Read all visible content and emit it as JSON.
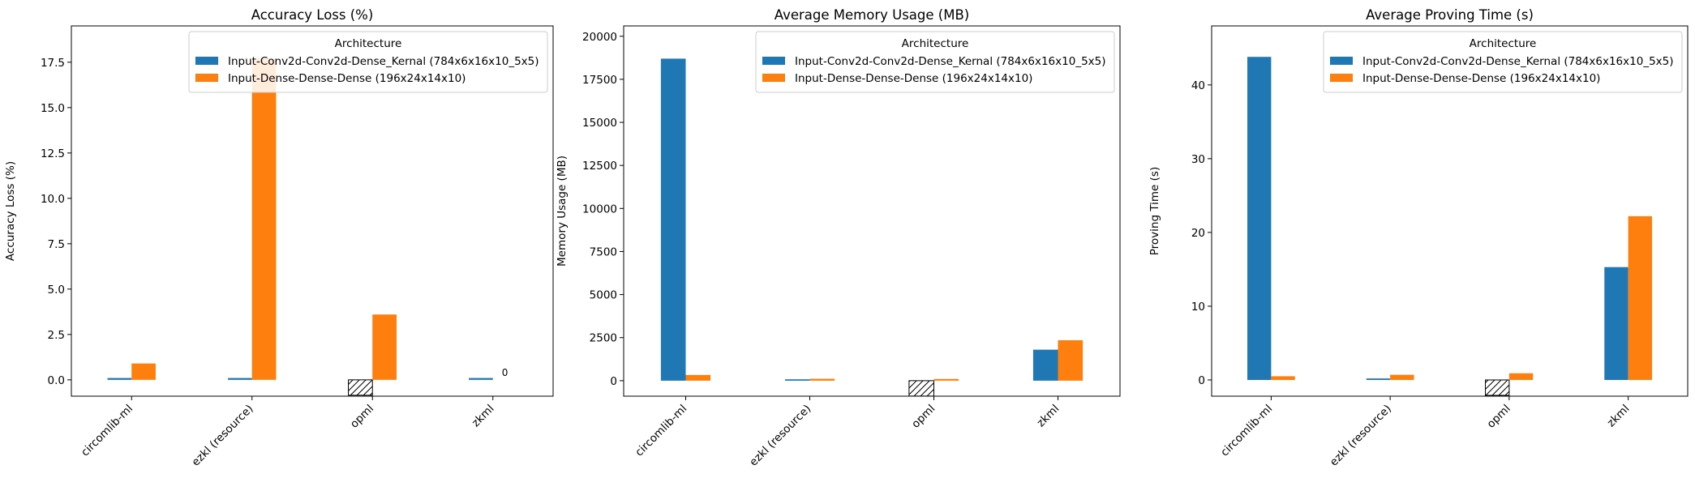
{
  "colors": {
    "series0": "#1f77b4",
    "series1": "#ff7f0e",
    "axis": "#000000"
  },
  "chart_data": [
    {
      "type": "bar",
      "title": "Accuracy Loss (%)",
      "ylabel": "Accuracy Loss (%)",
      "xlabel": "",
      "categories": [
        "circomlib-ml",
        "ezkl (resource)",
        "opml",
        "zkml"
      ],
      "ylim": [
        -0.9,
        19.5
      ],
      "yticks": [
        0.0,
        2.5,
        5.0,
        7.5,
        10.0,
        12.5,
        15.0,
        17.5
      ],
      "ytick_labels": [
        "0.0",
        "2.5",
        "5.0",
        "7.5",
        "10.0",
        "12.5",
        "15.0",
        "17.5"
      ],
      "legend_title": "Architecture",
      "legend_position": "upper right",
      "series": [
        {
          "name": "Input-Conv2d-Conv2d-Dense_Kernal (784x6x16x10_5x5)",
          "values": [
            0.1,
            0.1,
            null,
            0.1
          ]
        },
        {
          "name": "Input-Dense-Dense-Dense (196x24x14x10)",
          "values": [
            0.9,
            17.7,
            3.6,
            0
          ]
        }
      ],
      "missing": {
        "category": "opml",
        "series_index": 0,
        "style": "hatched"
      },
      "annotations": [
        {
          "text": "0",
          "category": "zkml",
          "series_index": 1
        }
      ]
    },
    {
      "type": "bar",
      "title": "Average Memory Usage (MB)",
      "ylabel": "Memory Usage (MB)",
      "xlabel": "",
      "categories": [
        "circomlib-ml",
        "ezkl (resource)",
        "opml",
        "zkml"
      ],
      "ylim": [
        -900,
        20600
      ],
      "yticks": [
        0,
        2500,
        5000,
        7500,
        10000,
        12500,
        15000,
        17500,
        20000
      ],
      "ytick_labels": [
        "0",
        "2500",
        "5000",
        "7500",
        "10000",
        "12500",
        "15000",
        "17500",
        "20000"
      ],
      "legend_title": "Architecture",
      "legend_position": "upper right",
      "series": [
        {
          "name": "Input-Conv2d-Conv2d-Dense_Kernal (784x6x16x10_5x5)",
          "values": [
            18700,
            80,
            null,
            1800
          ]
        },
        {
          "name": "Input-Dense-Dense-Dense (196x24x14x10)",
          "values": [
            330,
            110,
            100,
            2350
          ]
        }
      ],
      "missing": {
        "category": "opml",
        "series_index": 0,
        "style": "hatched"
      },
      "annotations": []
    },
    {
      "type": "bar",
      "title": "Average Proving Time (s)",
      "ylabel": "Proving Time (s)",
      "xlabel": "",
      "categories": [
        "circomlib-ml",
        "ezkl (resource)",
        "opml",
        "zkml"
      ],
      "ylim": [
        -2.2,
        48
      ],
      "yticks": [
        0,
        10,
        20,
        30,
        40
      ],
      "ytick_labels": [
        "0",
        "10",
        "20",
        "30",
        "40"
      ],
      "legend_title": "Architecture",
      "legend_position": "upper right",
      "series": [
        {
          "name": "Input-Conv2d-Conv2d-Dense_Kernal (784x6x16x10_5x5)",
          "values": [
            43.8,
            0.2,
            null,
            15.3
          ]
        },
        {
          "name": "Input-Dense-Dense-Dense (196x24x14x10)",
          "values": [
            0.5,
            0.7,
            0.9,
            22.2
          ]
        }
      ],
      "missing": {
        "category": "opml",
        "series_index": 0,
        "style": "hatched"
      },
      "annotations": []
    }
  ]
}
